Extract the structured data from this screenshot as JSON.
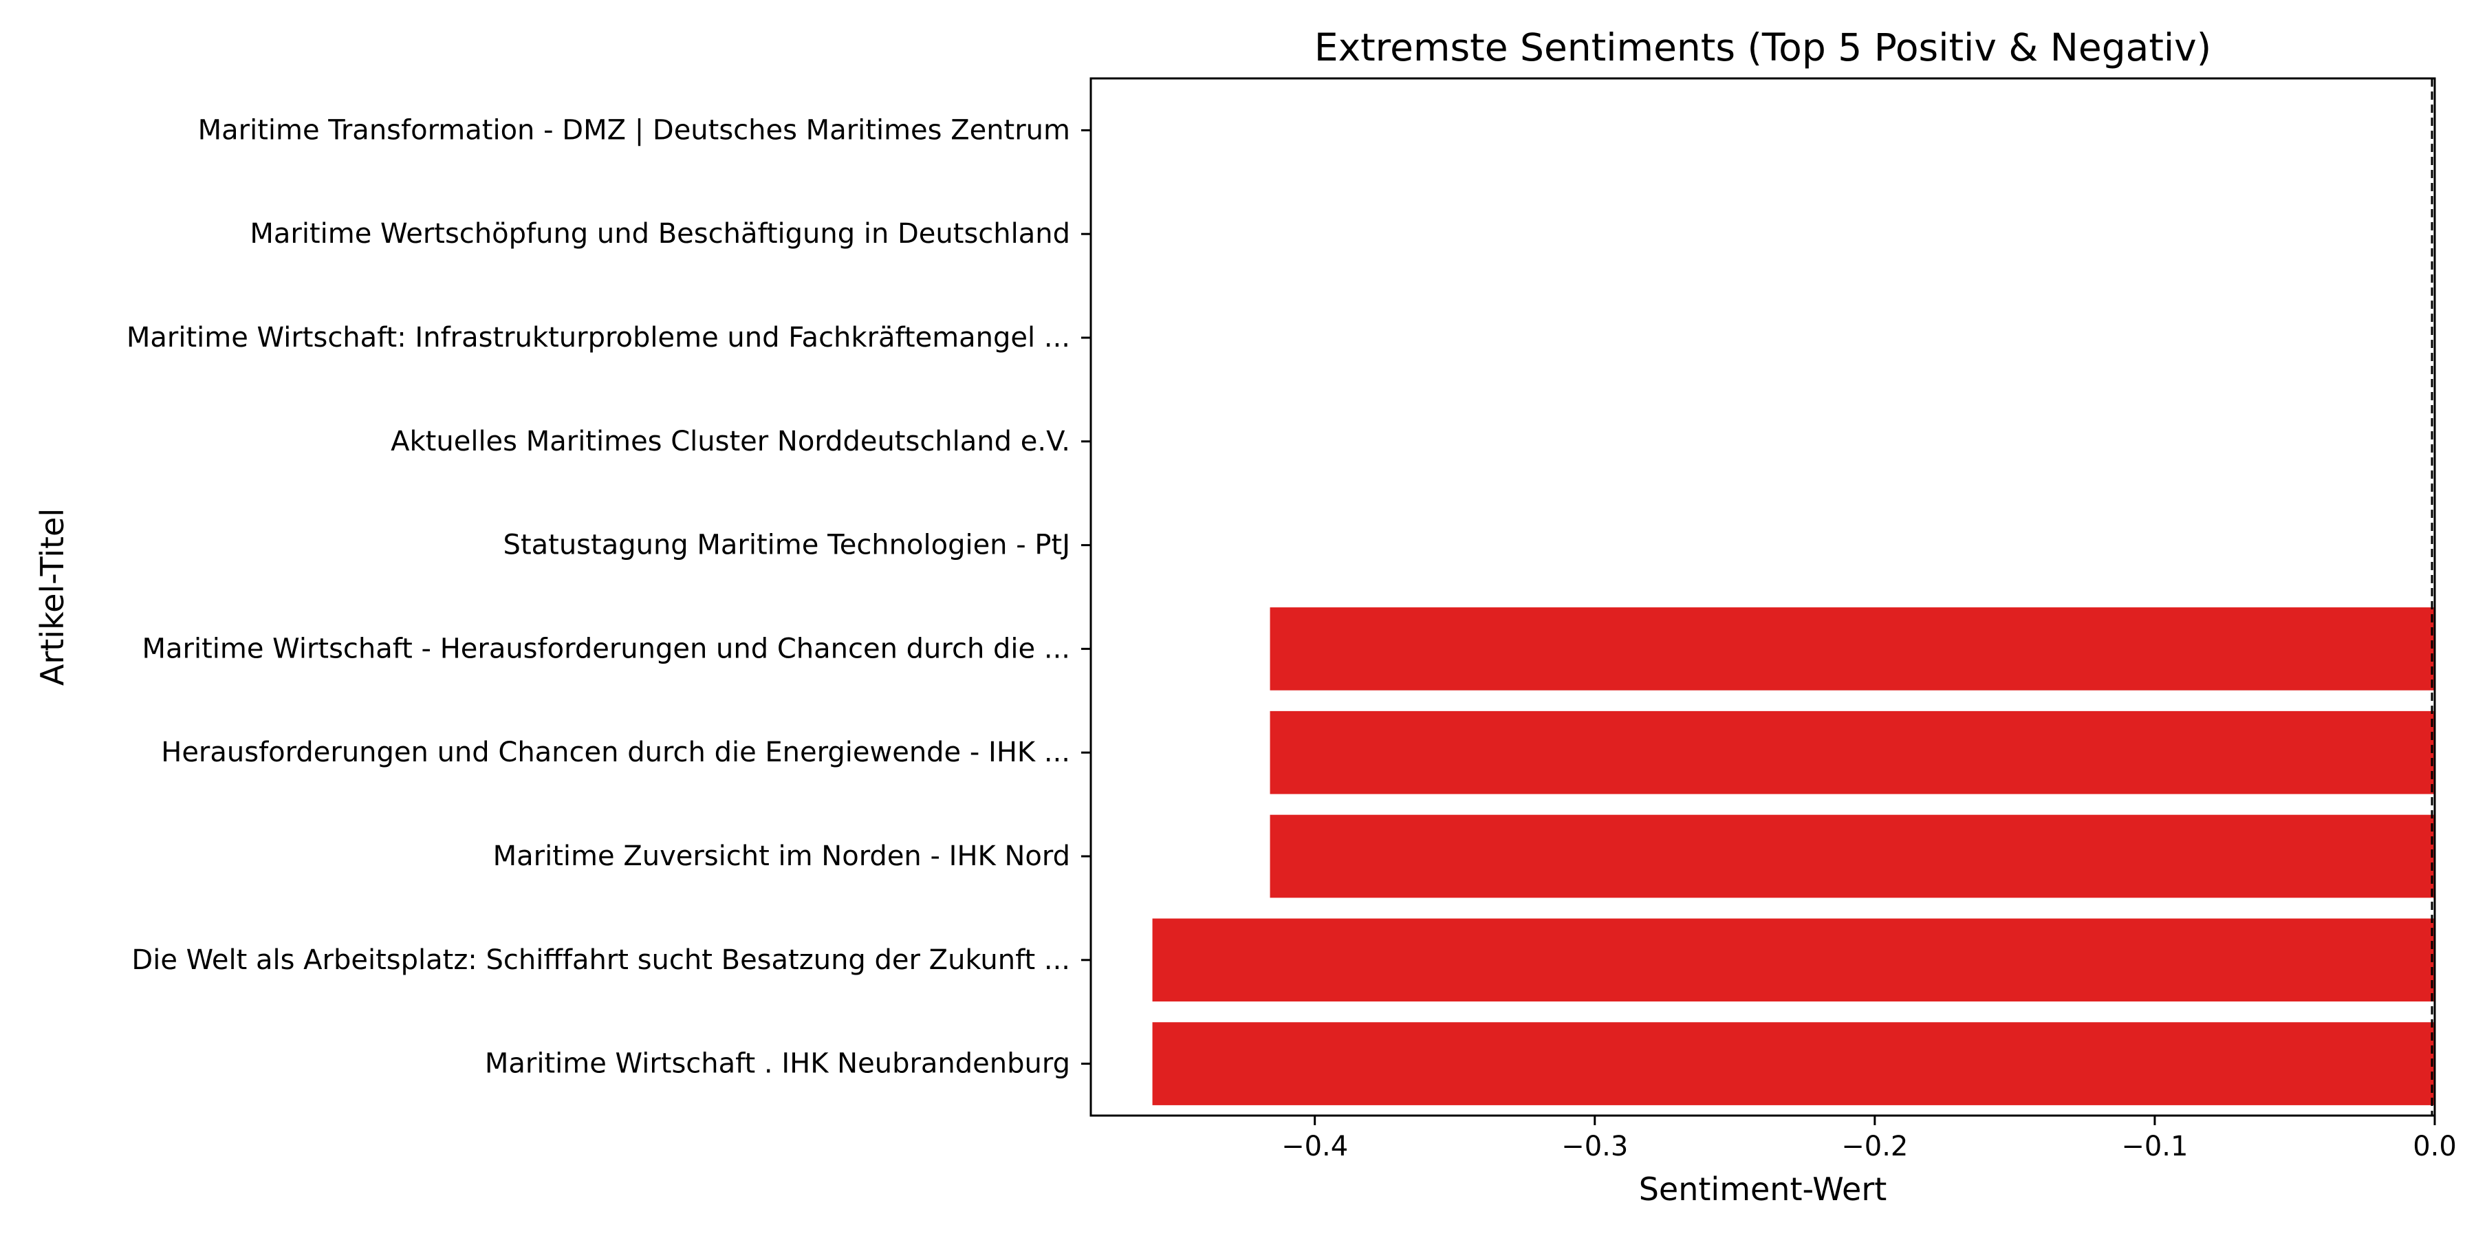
{
  "chart_data": {
    "type": "bar",
    "orientation": "horizontal",
    "title": "Extremste Sentiments (Top 5 Positiv & Negativ)",
    "xlabel": "Sentiment-Wert",
    "ylabel": "Artikel-Titel",
    "xlim": [
      -0.48,
      0.0
    ],
    "xticks": [
      -0.4,
      -0.3,
      -0.2,
      -0.1,
      0.0
    ],
    "xtick_labels": [
      "−0.4",
      "−0.3",
      "−0.2",
      "−0.1",
      "0.0"
    ],
    "grid": false,
    "reference_line": {
      "x": 0.0,
      "style": "dashed",
      "color": "#000000"
    },
    "bar_color": "#e02020",
    "categories": [
      "Maritime Transformation - DMZ | Deutsches Maritimes Zentrum",
      "Maritime Wertschöpfung und Beschäftigung in Deutschland",
      "Maritime Wirtschaft: Infrastrukturprobleme und Fachkräftemangel ...",
      "Aktuelles Maritimes Cluster Norddeutschland e.V.",
      "Statustagung Maritime Technologien - PtJ",
      "Maritime Wirtschaft - Herausforderungen und Chancen durch die ...",
      "Herausforderungen und Chancen durch die Energiewende - IHK ...",
      "Maritime Zuversicht im Norden - IHK Nord",
      "Die Welt als Arbeitsplatz: Schifffahrt sucht Besatzung der Zukunft ...",
      "Maritime Wirtschaft . IHK Neubrandenburg"
    ],
    "values": [
      0.0,
      0.0,
      0.0,
      0.0,
      0.0,
      -0.416,
      -0.416,
      -0.416,
      -0.458,
      -0.458
    ]
  }
}
